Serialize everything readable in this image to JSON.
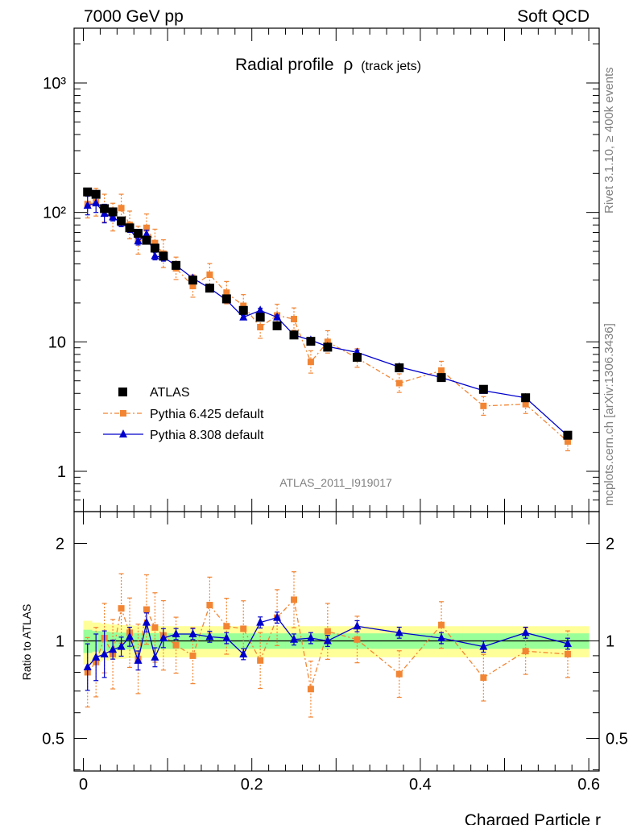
{
  "header": {
    "energy_label": "7000 GeV pp",
    "category_label": "Soft QCD"
  },
  "side_labels": {
    "rivet": "Rivet 3.1.10, ≥ 400k events",
    "source": "mcplots.cern.ch [arXiv:1306.3436]"
  },
  "colors": {
    "atlas": "#000000",
    "pythia6": "#f28533",
    "pythia8": "#0000cc",
    "band_inner": "#99ff99",
    "band_outer": "#ffff99"
  },
  "chart_data": [
    {
      "type": "scatter",
      "title": "Radial profile ρ (track jets)",
      "title_main": "Radial profile",
      "title_rho": "ρ",
      "title_sub": "(track jets)",
      "watermark": "ATLAS_2011_I919017",
      "xlabel": "Charged Particle r",
      "ylabel": "",
      "y_scale": "log",
      "xlim": [
        -0.01,
        0.61
      ],
      "ylim": [
        0.55,
        2500
      ],
      "y_tick_labels": [
        "1",
        "10",
        "10²",
        "10³"
      ],
      "x_tick_labels": [
        "0",
        "0.2",
        "0.4",
        "0.6"
      ],
      "legend_placement": "lower-left",
      "series": [
        {
          "name": "ATLAS",
          "marker": "square",
          "x": [
            0.005,
            0.015,
            0.025,
            0.035,
            0.045,
            0.055,
            0.065,
            0.075,
            0.085,
            0.095,
            0.11,
            0.13,
            0.15,
            0.17,
            0.19,
            0.21,
            0.23,
            0.25,
            0.27,
            0.29,
            0.325,
            0.375,
            0.425,
            0.475,
            0.525,
            0.575
          ],
          "y": [
            144,
            138,
            107,
            101,
            86,
            76,
            69,
            61,
            53,
            46,
            39,
            30,
            26,
            21.5,
            17.5,
            15.5,
            13.3,
            11.3,
            10.1,
            9.1,
            7.6,
            6.3,
            5.3,
            4.3,
            3.7,
            1.9
          ]
        },
        {
          "name": "Pythia 6.425 default",
          "marker": "square",
          "line": "dash-dot",
          "x": [
            0.005,
            0.015,
            0.025,
            0.035,
            0.045,
            0.055,
            0.065,
            0.075,
            0.085,
            0.095,
            0.11,
            0.13,
            0.15,
            0.17,
            0.19,
            0.21,
            0.23,
            0.25,
            0.27,
            0.29,
            0.325,
            0.375,
            0.425,
            0.475,
            0.525,
            0.575
          ],
          "y": [
            116,
            120,
            108,
            92,
            108,
            80,
            61,
            76,
            58,
            48,
            37,
            27,
            33,
            24,
            19,
            13,
            16,
            15,
            7,
            10,
            7.5,
            4.8,
            6,
            3.2,
            3.3,
            1.7
          ]
        },
        {
          "name": "Pythia 8.308 default",
          "marker": "triangle",
          "line": "solid",
          "x": [
            0.005,
            0.015,
            0.025,
            0.035,
            0.045,
            0.055,
            0.065,
            0.075,
            0.085,
            0.095,
            0.11,
            0.13,
            0.15,
            0.17,
            0.19,
            0.21,
            0.23,
            0.25,
            0.27,
            0.29,
            0.325,
            0.375,
            0.425,
            0.475,
            0.525,
            0.575
          ],
          "y": [
            113,
            118,
            98,
            92,
            83,
            75,
            60,
            68,
            46,
            45,
            39,
            31,
            26,
            21,
            15.5,
            17.5,
            15.5,
            11.3,
            10.3,
            9.2,
            8.3,
            6.4,
            5.3,
            4.2,
            3.7,
            1.88
          ]
        }
      ]
    },
    {
      "type": "scatter",
      "xlabel": "Charged Particle r",
      "ylabel": "Ratio to ATLAS",
      "y_scale": "log",
      "xlim": [
        -0.01,
        0.61
      ],
      "ylim": [
        0.4,
        2.5
      ],
      "y_tick_labels": [
        "0.5",
        "1",
        "2"
      ],
      "x_tick_labels": [
        "0",
        "0.2",
        "0.4",
        "0.6"
      ],
      "reference": 1,
      "series": [
        {
          "name": "Pythia 6.425 default",
          "marker": "square",
          "line": "dash-dot",
          "x": [
            0.005,
            0.015,
            0.025,
            0.035,
            0.045,
            0.055,
            0.065,
            0.075,
            0.085,
            0.095,
            0.11,
            0.13,
            0.15,
            0.17,
            0.19,
            0.21,
            0.23,
            0.25,
            0.27,
            0.29,
            0.325,
            0.375,
            0.425,
            0.475,
            0.525,
            0.575
          ],
          "y": [
            0.8,
            0.86,
            1.02,
            0.91,
            1.26,
            1.06,
            0.88,
            1.25,
            1.1,
            1.04,
            0.97,
            0.9,
            1.29,
            1.11,
            1.09,
            0.87,
            1.18,
            1.34,
            0.71,
            1.07,
            1.01,
            0.79,
            1.12,
            0.77,
            0.93,
            0.91
          ]
        },
        {
          "name": "Pythia 8.308 default",
          "marker": "triangle",
          "line": "solid",
          "x": [
            0.005,
            0.015,
            0.025,
            0.035,
            0.045,
            0.055,
            0.065,
            0.075,
            0.085,
            0.095,
            0.11,
            0.13,
            0.15,
            0.17,
            0.19,
            0.21,
            0.23,
            0.25,
            0.27,
            0.29,
            0.325,
            0.375,
            0.425,
            0.475,
            0.525,
            0.575
          ],
          "y": [
            0.83,
            0.89,
            0.91,
            0.94,
            0.96,
            1.03,
            0.87,
            1.14,
            0.89,
            1.02,
            1.05,
            1.05,
            1.03,
            1.02,
            0.91,
            1.14,
            1.18,
            1.01,
            1.02,
            1.0,
            1.11,
            1.06,
            1.02,
            0.96,
            1.06,
            0.98
          ]
        }
      ],
      "band_inner_halfwidth": 0.055,
      "band_outer_halfwidth": 0.11
    }
  ]
}
